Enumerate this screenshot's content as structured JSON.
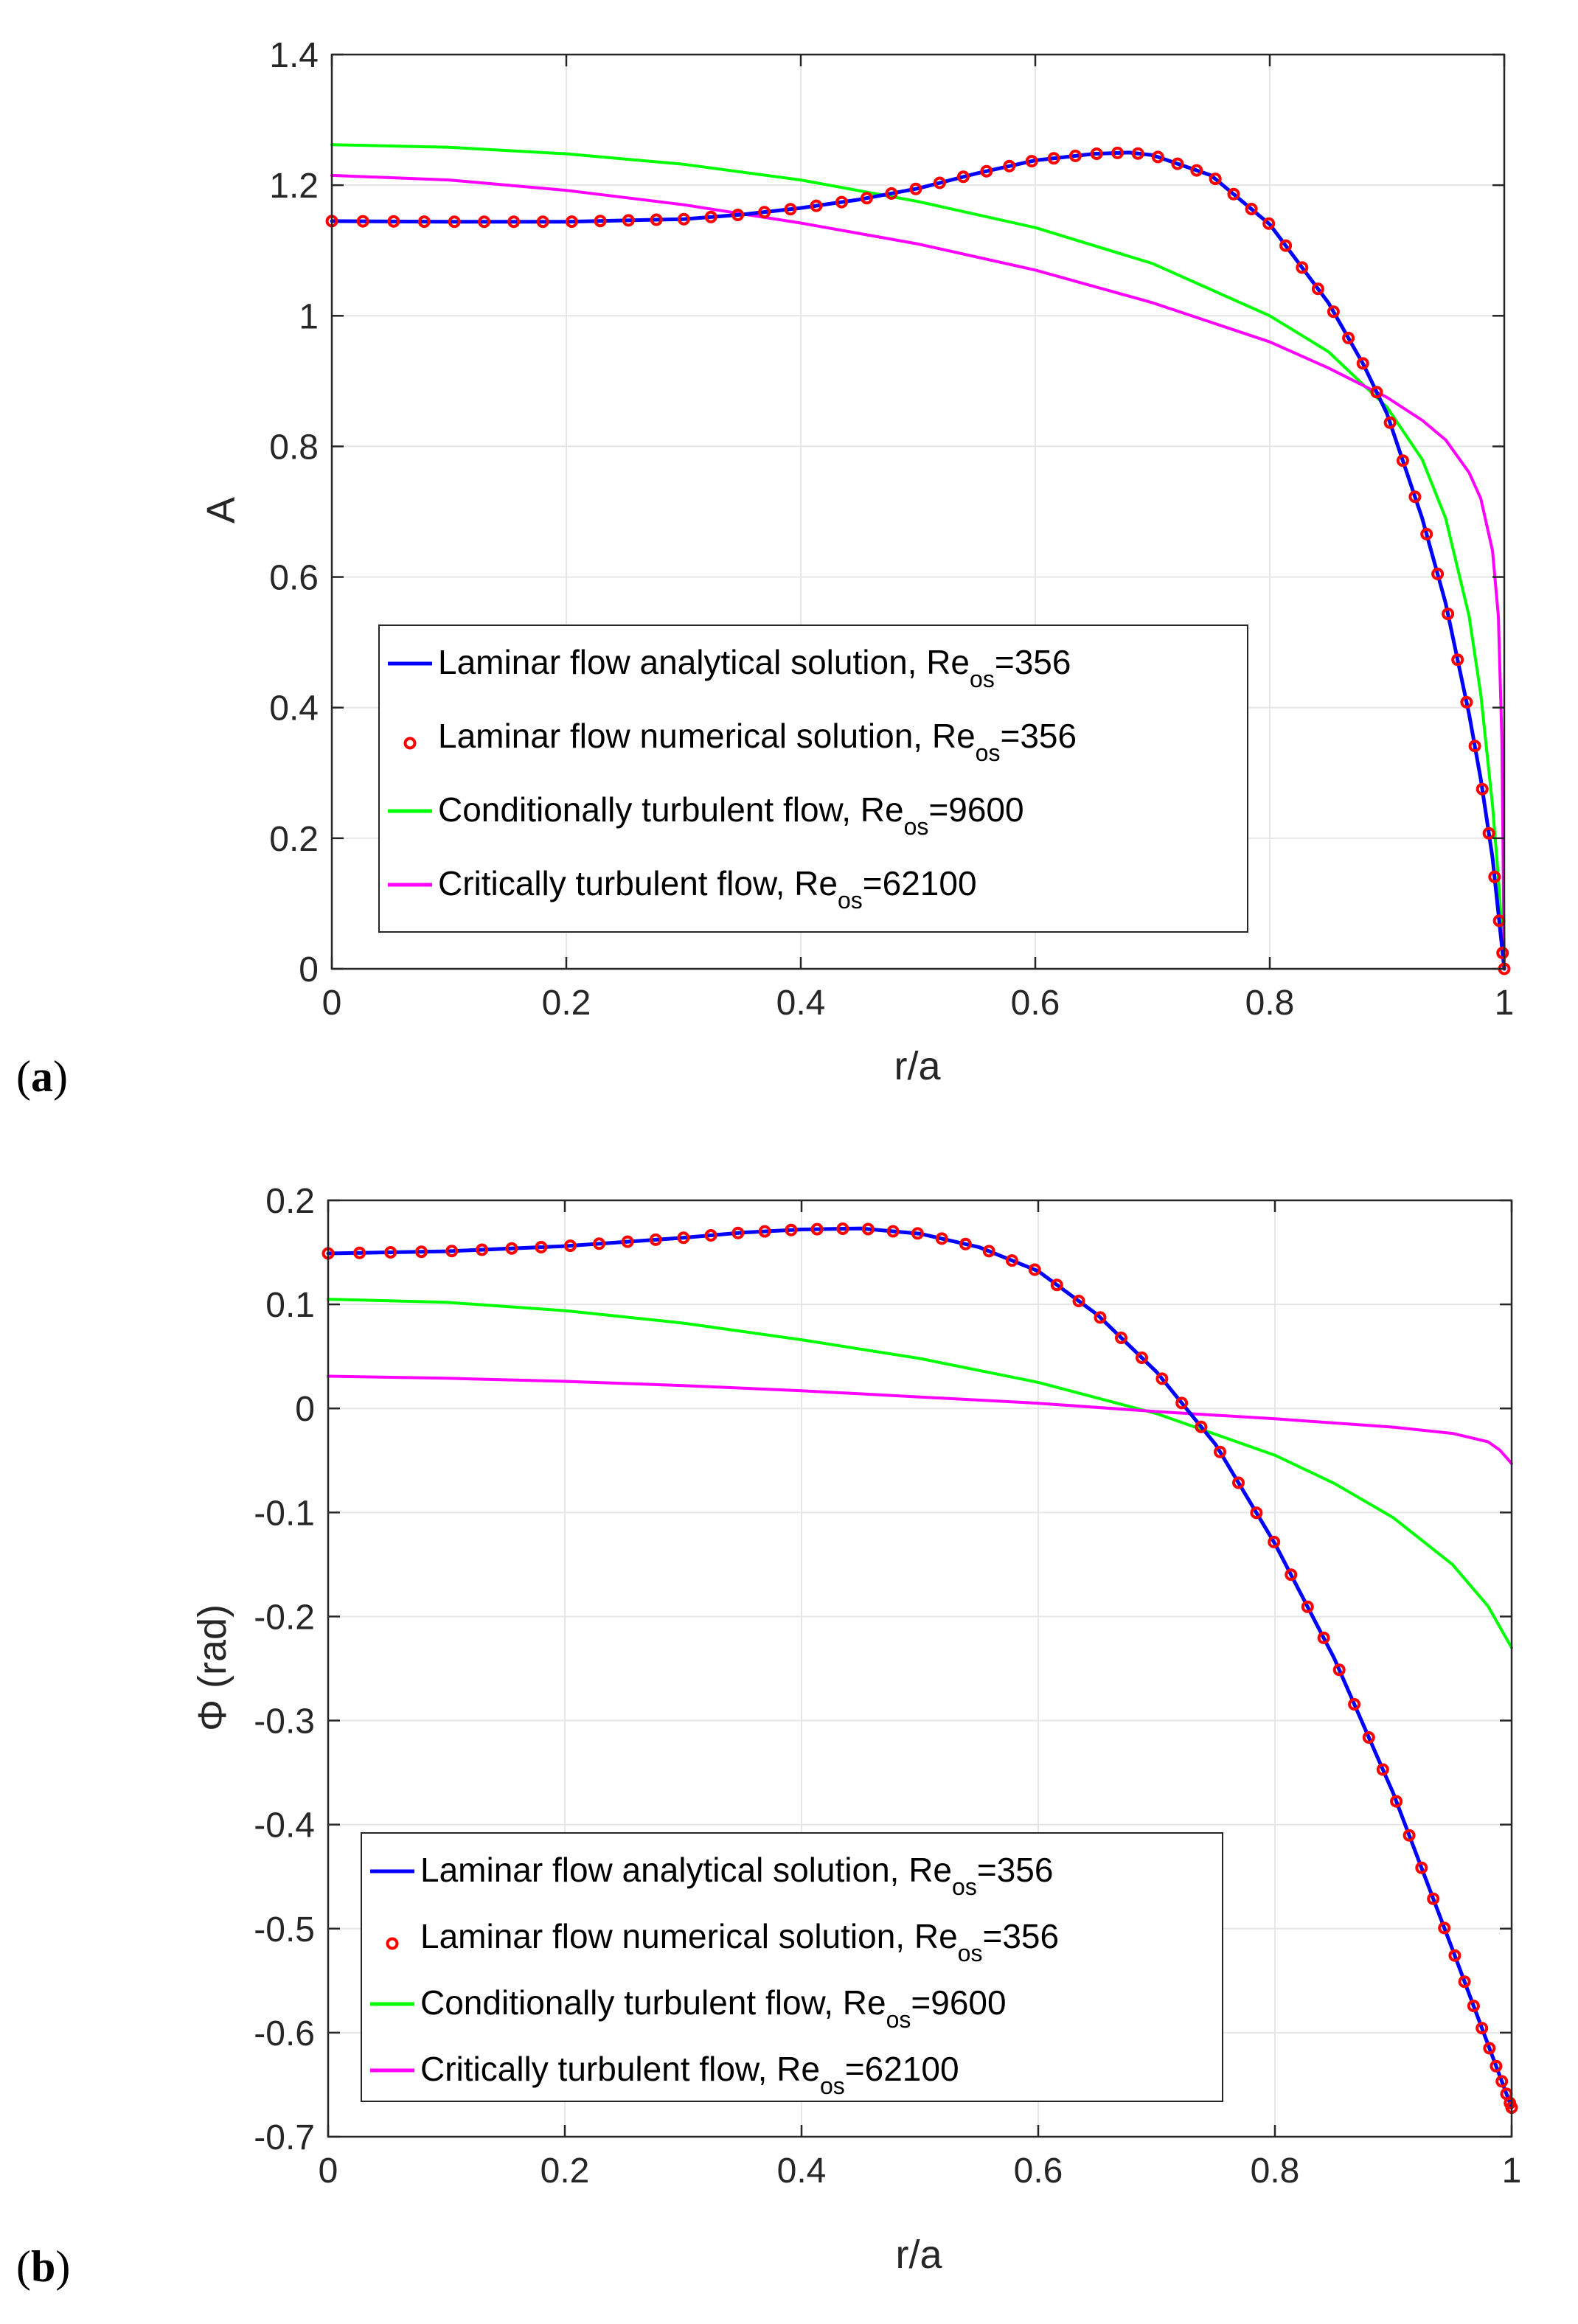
{
  "chart_data": [
    {
      "panel": "a",
      "panel_label": {
        "open": "(",
        "letter": "a",
        "close": ")"
      },
      "type": "line",
      "xlabel": "r/a",
      "ylabel": "A",
      "xlim": [
        0,
        1
      ],
      "ylim": [
        0,
        1.4
      ],
      "xticks": [
        0,
        0.2,
        0.4,
        0.6,
        0.8,
        1
      ],
      "xtick_labels": [
        "0",
        "0.2",
        "0.4",
        "0.6",
        "0.8",
        "1"
      ],
      "yticks": [
        0,
        0.2,
        0.4,
        0.6,
        0.8,
        1,
        1.2,
        1.4
      ],
      "ytick_labels": [
        "0",
        "0.2",
        "0.4",
        "0.6",
        "0.8",
        "1",
        "1.2",
        "1.4"
      ],
      "grid": true,
      "legend_position": "lower-left",
      "series": [
        {
          "name": "Laminar flow analytical solution, Re_os=356",
          "legend": {
            "text": "Laminar flow analytical solution, Re",
            "sub": "os",
            "suffix": "=356"
          },
          "style": "line",
          "color": "#0000ff",
          "x": [
            0,
            0.1,
            0.2,
            0.3,
            0.35,
            0.4,
            0.45,
            0.5,
            0.55,
            0.6,
            0.65,
            0.68,
            0.7,
            0.75,
            0.8,
            0.85,
            0.88,
            0.9,
            0.93,
            0.95,
            0.97,
            0.98,
            0.99,
            1.0
          ],
          "y": [
            1.145,
            1.144,
            1.144,
            1.148,
            1.155,
            1.165,
            1.178,
            1.195,
            1.218,
            1.238,
            1.248,
            1.25,
            1.246,
            1.215,
            1.14,
            1.02,
            0.925,
            0.85,
            0.69,
            0.56,
            0.39,
            0.29,
            0.17,
            0.0
          ]
        },
        {
          "name": "Laminar flow numerical solution, Re_os=356",
          "legend": {
            "text": "Laminar flow numerical solution, Re",
            "sub": "os",
            "suffix": "=356"
          },
          "style": "marker",
          "color": "#ff0000",
          "x": [
            0,
            0.1,
            0.2,
            0.3,
            0.35,
            0.4,
            0.45,
            0.5,
            0.55,
            0.6,
            0.65,
            0.68,
            0.7,
            0.75,
            0.8,
            0.85,
            0.88,
            0.9,
            0.93,
            0.95,
            0.97,
            0.98,
            0.99,
            1.0
          ],
          "y": [
            1.145,
            1.144,
            1.144,
            1.148,
            1.155,
            1.165,
            1.178,
            1.195,
            1.218,
            1.238,
            1.248,
            1.25,
            1.246,
            1.215,
            1.14,
            1.02,
            0.925,
            0.85,
            0.69,
            0.56,
            0.39,
            0.29,
            0.17,
            0.0
          ]
        },
        {
          "name": "Conditionally turbulent flow, Re_os=9600",
          "legend": {
            "text": "Conditionally turbulent flow, Re",
            "sub": "os",
            "suffix": "=9600"
          },
          "style": "line",
          "color": "#00ff00",
          "x": [
            0,
            0.1,
            0.2,
            0.3,
            0.4,
            0.5,
            0.6,
            0.7,
            0.8,
            0.85,
            0.9,
            0.93,
            0.95,
            0.97,
            0.98,
            0.99,
            0.995,
            1.0
          ],
          "y": [
            1.262,
            1.258,
            1.248,
            1.232,
            1.208,
            1.175,
            1.135,
            1.08,
            1.0,
            0.945,
            0.86,
            0.78,
            0.69,
            0.54,
            0.42,
            0.25,
            0.14,
            0.0
          ]
        },
        {
          "name": "Critically turbulent flow, Re_os=62100",
          "legend": {
            "text": "Critically turbulent flow, Re",
            "sub": "os",
            "suffix": "=62100"
          },
          "style": "line",
          "color": "#ff00ff",
          "x": [
            0,
            0.1,
            0.2,
            0.3,
            0.4,
            0.5,
            0.6,
            0.7,
            0.8,
            0.85,
            0.9,
            0.93,
            0.95,
            0.97,
            0.98,
            0.99,
            0.995,
            0.998,
            1.0
          ],
          "y": [
            1.215,
            1.208,
            1.192,
            1.17,
            1.142,
            1.11,
            1.07,
            1.02,
            0.96,
            0.92,
            0.875,
            0.84,
            0.81,
            0.76,
            0.72,
            0.64,
            0.54,
            0.35,
            0.0
          ]
        }
      ]
    },
    {
      "panel": "b",
      "panel_label": {
        "open": "(",
        "letter": "b",
        "close": ")"
      },
      "type": "line",
      "xlabel": "r/a",
      "ylabel": "Φ (rad)",
      "xlim": [
        0,
        1
      ],
      "ylim": [
        -0.7,
        0.2
      ],
      "xticks": [
        0,
        0.2,
        0.4,
        0.6,
        0.8,
        1
      ],
      "xtick_labels": [
        "0",
        "0.2",
        "0.4",
        "0.6",
        "0.8",
        "1"
      ],
      "yticks": [
        -0.7,
        -0.6,
        -0.5,
        -0.4,
        -0.3,
        -0.2,
        -0.1,
        0,
        0.1,
        0.2
      ],
      "ytick_labels": [
        "-0.7",
        "-0.6",
        "-0.5",
        "-0.4",
        "-0.3",
        "-0.2",
        "-0.1",
        "0",
        "0.1",
        "0.2"
      ],
      "grid": true,
      "legend_position": "lower-left",
      "series": [
        {
          "name": "Laminar flow analytical solution, Re_os=356",
          "legend": {
            "text": "Laminar flow analytical solution, Re",
            "sub": "os",
            "suffix": "=356"
          },
          "style": "line",
          "color": "#0000ff",
          "x": [
            0,
            0.1,
            0.2,
            0.3,
            0.35,
            0.4,
            0.45,
            0.5,
            0.55,
            0.6,
            0.65,
            0.7,
            0.75,
            0.8,
            0.85,
            0.9,
            0.95,
            1.0
          ],
          "y": [
            0.149,
            0.151,
            0.156,
            0.164,
            0.169,
            0.172,
            0.173,
            0.168,
            0.155,
            0.132,
            0.09,
            0.035,
            -0.035,
            -0.13,
            -0.24,
            -0.37,
            -0.52,
            -0.672
          ]
        },
        {
          "name": "Laminar flow numerical solution, Re_os=356",
          "legend": {
            "text": "Laminar flow numerical solution, Re",
            "sub": "os",
            "suffix": "=356"
          },
          "style": "marker",
          "color": "#ff0000",
          "x": [
            0,
            0.1,
            0.2,
            0.3,
            0.35,
            0.4,
            0.45,
            0.5,
            0.55,
            0.6,
            0.65,
            0.7,
            0.75,
            0.8,
            0.85,
            0.9,
            0.95,
            1.0
          ],
          "y": [
            0.149,
            0.151,
            0.156,
            0.164,
            0.169,
            0.172,
            0.173,
            0.168,
            0.155,
            0.132,
            0.09,
            0.035,
            -0.035,
            -0.13,
            -0.24,
            -0.37,
            -0.52,
            -0.672
          ]
        },
        {
          "name": "Conditionally turbulent flow, Re_os=9600",
          "legend": {
            "text": "Conditionally turbulent flow, Re",
            "sub": "os",
            "suffix": "=9600"
          },
          "style": "line",
          "color": "#00ff00",
          "x": [
            0,
            0.1,
            0.2,
            0.3,
            0.4,
            0.5,
            0.6,
            0.7,
            0.8,
            0.85,
            0.9,
            0.95,
            0.98,
            1.0
          ],
          "y": [
            0.105,
            0.102,
            0.094,
            0.082,
            0.066,
            0.048,
            0.025,
            -0.005,
            -0.045,
            -0.072,
            -0.105,
            -0.15,
            -0.19,
            -0.23
          ]
        },
        {
          "name": "Critically turbulent flow, Re_os=62100",
          "legend": {
            "text": "Critically turbulent flow, Re",
            "sub": "os",
            "suffix": "=62100"
          },
          "style": "line",
          "color": "#ff00ff",
          "x": [
            0,
            0.1,
            0.2,
            0.3,
            0.4,
            0.5,
            0.6,
            0.7,
            0.8,
            0.9,
            0.95,
            0.98,
            0.99,
            1.0
          ],
          "y": [
            0.031,
            0.029,
            0.026,
            0.022,
            0.017,
            0.011,
            0.005,
            -0.003,
            -0.01,
            -0.018,
            -0.024,
            -0.032,
            -0.04,
            -0.053
          ]
        }
      ]
    }
  ]
}
